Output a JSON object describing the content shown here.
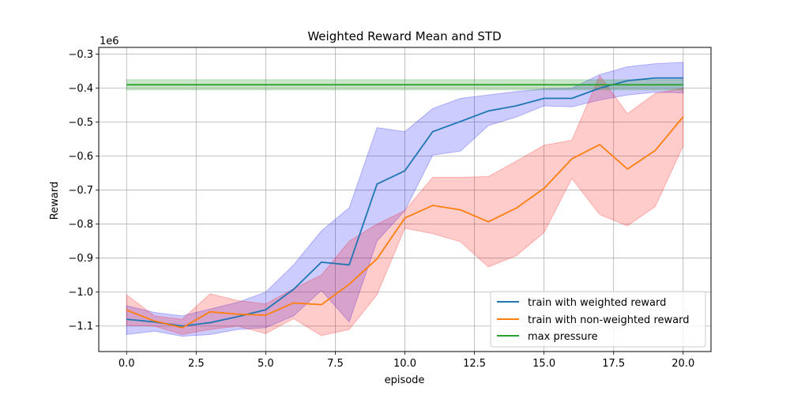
{
  "chart_data": {
    "type": "line",
    "title": "Weighted Reward Mean and STD",
    "xlabel": "episode",
    "ylabel": "Reward",
    "offset_text": "1e6",
    "xlim": [
      -1.0,
      21.0
    ],
    "ylim": [
      -1.175,
      -0.28
    ],
    "xticks": [
      0.0,
      2.5,
      5.0,
      7.5,
      10.0,
      12.5,
      15.0,
      17.5,
      20.0
    ],
    "xtick_labels": [
      "0.0",
      "2.5",
      "5.0",
      "7.5",
      "10.0",
      "12.5",
      "15.0",
      "17.5",
      "20.0"
    ],
    "yticks": [
      -1.1,
      -1.0,
      -0.9,
      -0.8,
      -0.7,
      -0.6,
      -0.5,
      -0.4,
      -0.3
    ],
    "ytick_labels": [
      "−1.1",
      "−1.0",
      "−0.9",
      "−0.8",
      "−0.7",
      "−0.6",
      "−0.5",
      "−0.4",
      "−0.3"
    ],
    "grid": true,
    "legend_position": "lower-right",
    "x": [
      0,
      1,
      2,
      3,
      4,
      5,
      6,
      7,
      8,
      9,
      10,
      11,
      12,
      13,
      14,
      15,
      16,
      17,
      18,
      19,
      20
    ],
    "series": [
      {
        "name": "train with weighted reward",
        "color": "#1f77b4",
        "band_color": "#0000ff",
        "band_opacity": 0.2,
        "values": [
          -1.08,
          -1.088,
          -1.1,
          -1.09,
          -1.072,
          -1.052,
          -0.992,
          -0.912,
          -0.92,
          -0.682,
          -0.643,
          -0.528,
          -0.498,
          -0.467,
          -0.452,
          -0.43,
          -0.43,
          -0.4,
          -0.378,
          -0.37,
          -0.37
        ],
        "upper": [
          -1.04,
          -1.06,
          -1.07,
          -1.05,
          -1.03,
          -1.0,
          -0.92,
          -0.82,
          -0.752,
          -0.516,
          -0.528,
          -0.46,
          -0.43,
          -0.42,
          -0.41,
          -0.402,
          -0.4,
          -0.36,
          -0.337,
          -0.328,
          -0.324
        ],
        "lower": [
          -1.125,
          -1.115,
          -1.13,
          -1.125,
          -1.11,
          -1.105,
          -1.07,
          -0.995,
          -1.088,
          -0.85,
          -0.76,
          -0.597,
          -0.585,
          -0.51,
          -0.485,
          -0.452,
          -0.455,
          -0.435,
          -0.42,
          -0.412,
          -0.414
        ]
      },
      {
        "name": "train with non-weighted reward",
        "color": "#ff7f0e",
        "band_color": "#ff0000",
        "band_opacity": 0.2,
        "values": [
          -1.053,
          -1.085,
          -1.105,
          -1.058,
          -1.065,
          -1.068,
          -1.032,
          -1.037,
          -0.977,
          -0.902,
          -0.782,
          -0.745,
          -0.758,
          -0.793,
          -0.753,
          -0.695,
          -0.608,
          -0.566,
          -0.638,
          -0.583,
          -0.484
        ],
        "upper": [
          -1.008,
          -1.07,
          -1.08,
          -1.005,
          -1.025,
          -1.035,
          -0.99,
          -0.95,
          -0.85,
          -0.8,
          -0.76,
          -0.662,
          -0.662,
          -0.66,
          -0.615,
          -0.568,
          -0.553,
          -0.363,
          -0.475,
          -0.415,
          -0.4
        ],
        "lower": [
          -1.098,
          -1.1,
          -1.125,
          -1.11,
          -1.1,
          -1.122,
          -1.078,
          -1.128,
          -1.11,
          -1.008,
          -0.812,
          -0.828,
          -0.852,
          -0.926,
          -0.893,
          -0.825,
          -0.666,
          -0.772,
          -0.805,
          -0.748,
          -0.57
        ]
      },
      {
        "name": "max pressure",
        "color": "#2ca02c",
        "band_color": "#2ca02c",
        "band_opacity": 0.25,
        "values": [
          -0.39,
          -0.39,
          -0.39,
          -0.39,
          -0.39,
          -0.39,
          -0.39,
          -0.39,
          -0.39,
          -0.39,
          -0.39,
          -0.39,
          -0.39,
          -0.39,
          -0.39,
          -0.39,
          -0.39,
          -0.39,
          -0.39,
          -0.39,
          -0.39
        ],
        "upper": [
          -0.375,
          -0.375,
          -0.375,
          -0.375,
          -0.375,
          -0.375,
          -0.375,
          -0.375,
          -0.375,
          -0.375,
          -0.375,
          -0.375,
          -0.375,
          -0.375,
          -0.375,
          -0.375,
          -0.375,
          -0.375,
          -0.375,
          -0.375,
          -0.375
        ],
        "lower": [
          -0.405,
          -0.405,
          -0.405,
          -0.405,
          -0.405,
          -0.405,
          -0.405,
          -0.405,
          -0.405,
          -0.405,
          -0.405,
          -0.405,
          -0.405,
          -0.405,
          -0.405,
          -0.405,
          -0.405,
          -0.405,
          -0.405,
          -0.405,
          -0.405
        ]
      }
    ]
  }
}
